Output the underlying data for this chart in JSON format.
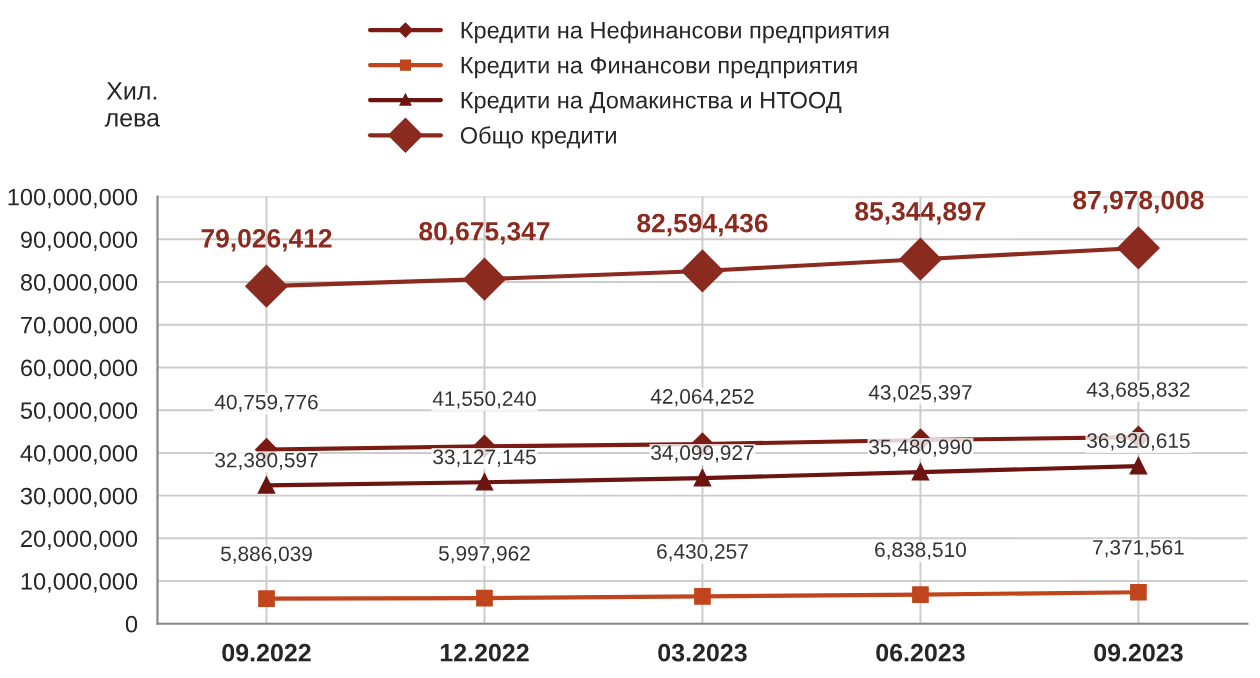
{
  "chart_data": {
    "type": "line",
    "ylabel": "Хил.\nлева",
    "categories": [
      "09.2022",
      "12.2022",
      "03.2023",
      "06.2023",
      "09.2023"
    ],
    "series": [
      {
        "name": "Кредити на Нефинансови предприятия",
        "color": "#7b1c14",
        "marker": "diamond",
        "values": [
          40759776,
          41550240,
          42064252,
          43025397,
          43685832
        ],
        "value_labels": [
          "40,759,776",
          "41,550,240",
          "42,064,252",
          "43,025,397",
          "43,685,832"
        ]
      },
      {
        "name": "Кредити на Финансови предприятия",
        "color": "#c0441c",
        "marker": "square",
        "values": [
          5886039,
          5997962,
          6430257,
          6838510,
          7371561
        ],
        "value_labels": [
          "5,886,039",
          "5,997,962",
          "6,430,257",
          "6,838,510",
          "7,371,561"
        ]
      },
      {
        "name": "Кредити на Домакинства и НТООД",
        "color": "#6b1410",
        "marker": "triangle",
        "values": [
          32380597,
          33127145,
          34099927,
          35480990,
          36920615
        ],
        "value_labels": [
          "32,380,597",
          "33,127,145",
          "34,099,927",
          "35,480,990",
          "36,920,615"
        ]
      },
      {
        "name": "Общо кредити",
        "color": "#8b2a1e",
        "marker": "diamond",
        "values": [
          79026412,
          80675347,
          82594436,
          85344897,
          87978008
        ],
        "value_labels": [
          "79,026,412",
          "80,675,347",
          "82,594,436",
          "85,344,897",
          "87,978,008"
        ]
      }
    ],
    "ylim": [
      0,
      100000000
    ],
    "yticks": [
      {
        "value": 0,
        "label": "0"
      },
      {
        "value": 10000000,
        "label": "10,000,000"
      },
      {
        "value": 20000000,
        "label": "20,000,000"
      },
      {
        "value": 30000000,
        "label": "30,000,000"
      },
      {
        "value": 40000000,
        "label": "40,000,000"
      },
      {
        "value": 50000000,
        "label": "50,000,000"
      },
      {
        "value": 60000000,
        "label": "60,000,000"
      },
      {
        "value": 70000000,
        "label": "70,000,000"
      },
      {
        "value": 80000000,
        "label": "80,000,000"
      },
      {
        "value": 90000000,
        "label": "90,000,000"
      },
      {
        "value": 100000000,
        "label": "100,000,000"
      }
    ],
    "grid": true,
    "legend": "top",
    "line_style": "solid"
  }
}
